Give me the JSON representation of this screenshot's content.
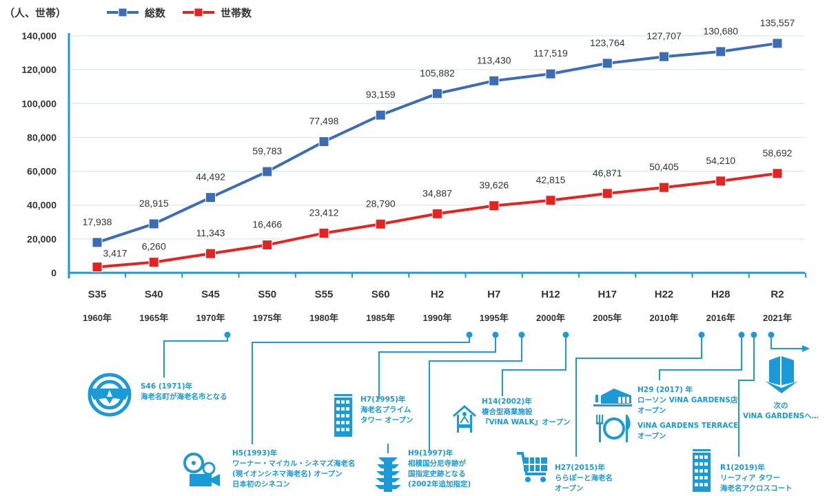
{
  "unit_label": "（人、世帯）",
  "colors": {
    "total": "#3b6db5",
    "households": "#e32420",
    "timeline": "#1a9ad6",
    "grid": "#cfe3ef"
  },
  "chart_data": {
    "type": "line",
    "title": "",
    "ylabel": "（人、世帯）",
    "ylim": [
      0,
      140000
    ],
    "yticks": [
      "0",
      "20,000",
      "40,000",
      "60,000",
      "80,000",
      "100,000",
      "120,000",
      "140,000"
    ],
    "ytick_values": [
      0,
      20000,
      40000,
      60000,
      80000,
      100000,
      120000,
      140000
    ],
    "grid": true,
    "legend_placement": "top-left",
    "categories": [
      "S35",
      "S40",
      "S45",
      "S50",
      "S55",
      "S60",
      "H2",
      "H7",
      "H12",
      "H17",
      "H22",
      "H28",
      "R2"
    ],
    "years": [
      "1960年",
      "1965年",
      "1970年",
      "1975年",
      "1980年",
      "1985年",
      "1990年",
      "1995年",
      "2000年",
      "2005年",
      "2010年",
      "2016年",
      "2021年"
    ],
    "series": [
      {
        "name": "総数",
        "values": [
          17938,
          28915,
          44492,
          59783,
          77498,
          93159,
          105882,
          113430,
          117519,
          123764,
          127707,
          130680,
          135557
        ],
        "labels": [
          "17,938",
          "28,915",
          "44,492",
          "59,783",
          "77,498",
          "93,159",
          "105,882",
          "113,430",
          "117,519",
          "123,764",
          "127,707",
          "130,680",
          "135,557"
        ]
      },
      {
        "name": "世帯数",
        "values": [
          3417,
          6260,
          11343,
          16466,
          23412,
          28790,
          34887,
          39626,
          42815,
          46871,
          50405,
          54210,
          58692
        ],
        "labels": [
          "3,417",
          "6,260",
          "11,343",
          "16,466",
          "23,412",
          "28,790",
          "34,887",
          "39,626",
          "42,815",
          "46,871",
          "50,405",
          "54,210",
          "58,692"
        ]
      }
    ]
  },
  "timeline": {
    "s46": [
      "S46 (1971)年",
      "海老名町が海老名市となる"
    ],
    "h5": [
      "H5(1993)年",
      "ワーナー・マイカル・シネマズ海老名",
      "(現イオンシネマ海老名) オープン",
      "日本初のシネコン"
    ],
    "h7": [
      "H7(1995)年",
      "海老名プライム",
      "タワー オープン"
    ],
    "h9": [
      "H9(1997)年",
      "相模国分尼寺跡が",
      "国指定史跡となる",
      "(2002年追加指定)"
    ],
    "h14": [
      "H14(2002)年",
      "複合型商業施設",
      "『ViNA WALK』オープン"
    ],
    "h27": [
      "H27(2015)年",
      "ららぽーと海老名",
      "オープン"
    ],
    "h29": [
      "H29 (2017) 年",
      "ローソン ViNA GARDENS店",
      "オープン"
    ],
    "terrace": [
      "ViNA GARDENS TERRACE",
      "オープン"
    ],
    "r1": [
      "R1(2019)年",
      "リーフィア タワー",
      "海老名アクロスコート"
    ],
    "next": [
      "次の",
      "ViNA GARDENSへ…"
    ]
  }
}
